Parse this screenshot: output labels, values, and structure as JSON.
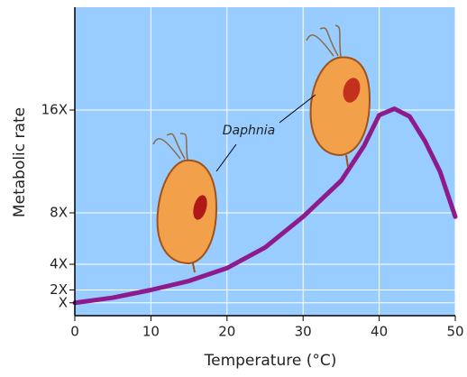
{
  "chart_data": {
    "type": "line",
    "x_label": "Temperature (°C)",
    "y_label": "Metabolic rate",
    "annotation": "Daphnia",
    "x": [
      0,
      5,
      10,
      15,
      20,
      25,
      30,
      35,
      38,
      40,
      42,
      44,
      46,
      48,
      50
    ],
    "values": [
      1.0,
      1.4,
      2.0,
      2.7,
      3.7,
      5.3,
      7.7,
      10.5,
      13.2,
      15.6,
      16.1,
      15.5,
      13.6,
      11.2,
      7.7
    ],
    "color": "#8e1b8e",
    "xlim": [
      0,
      50
    ],
    "xticks": [
      0,
      10,
      20,
      30,
      40,
      50
    ],
    "ylim": [
      0,
      24
    ],
    "yticks": [
      {
        "value": 1,
        "label": "X"
      },
      {
        "value": 2,
        "label": "2X"
      },
      {
        "value": 4,
        "label": "4X"
      },
      {
        "value": 8,
        "label": "8X"
      },
      {
        "value": 16,
        "label": "16X"
      }
    ],
    "grid": true,
    "background": "#99ccff"
  }
}
